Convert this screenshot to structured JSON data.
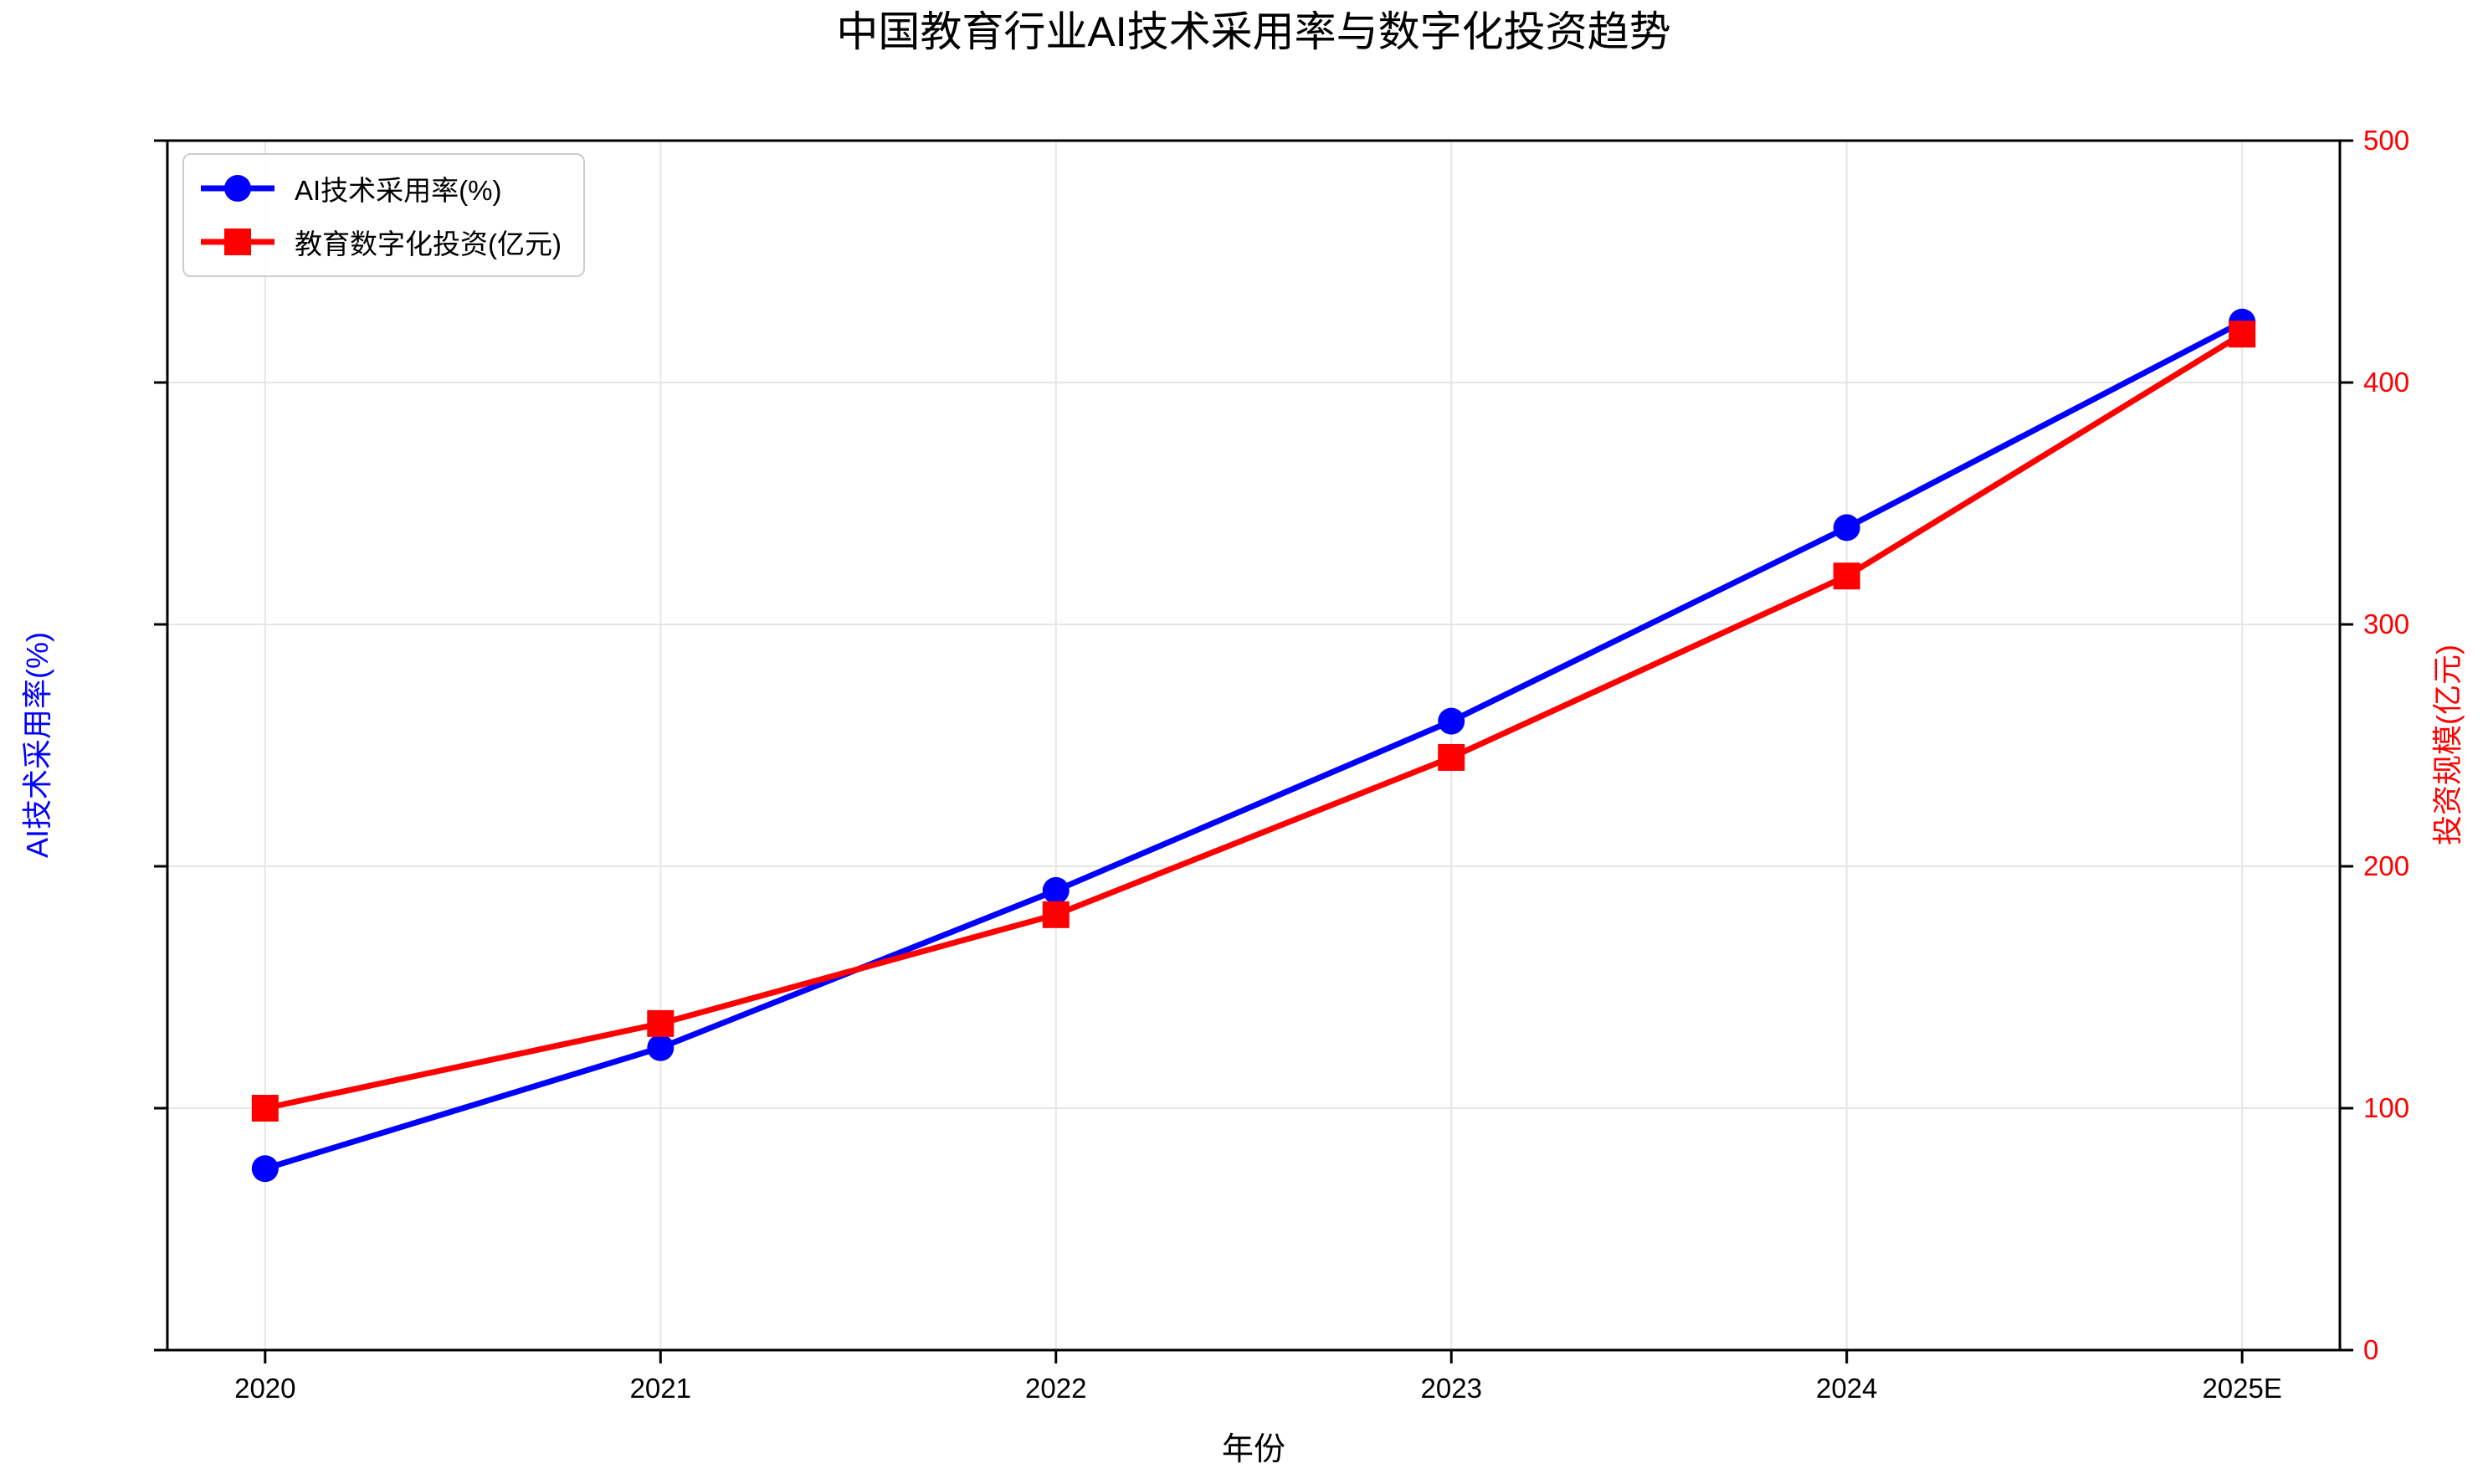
{
  "chart_data": {
    "type": "line",
    "title": "中国教育行业AI技术采用率与数字化投资趋势",
    "xlabel": "年份",
    "categories": [
      "2020",
      "2021",
      "2022",
      "2023",
      "2024",
      "2025E"
    ],
    "series": [
      {
        "name": "AI技术采用率(%)",
        "axis": "left",
        "color": "#0000ff",
        "marker": "circle",
        "values": [
          15,
          25,
          38,
          52,
          68,
          85
        ]
      },
      {
        "name": "教育数字化投资(亿元)",
        "axis": "right",
        "color": "#ff0000",
        "marker": "square",
        "values": [
          100,
          135,
          180,
          245,
          320,
          420
        ]
      }
    ],
    "left_axis": {
      "label": "AI技术采用率(%)",
      "color": "#0000ff",
      "min": 0,
      "max": 100,
      "ticks": [
        0,
        20,
        40,
        60,
        80,
        100
      ]
    },
    "right_axis": {
      "label": "投资规模(亿元)",
      "color": "#ff0000",
      "min": 0,
      "max": 500,
      "ticks": [
        0,
        100,
        200,
        300,
        400,
        500
      ]
    },
    "grid": true,
    "legend_position": "upper-left"
  },
  "colors": {
    "series_blue": "#0000ff",
    "series_red": "#ff0000",
    "grid": "#e6e6e6",
    "axis": "#000000",
    "tick": "#000000",
    "background": "#ffffff",
    "legend_border": "#cccccc"
  }
}
